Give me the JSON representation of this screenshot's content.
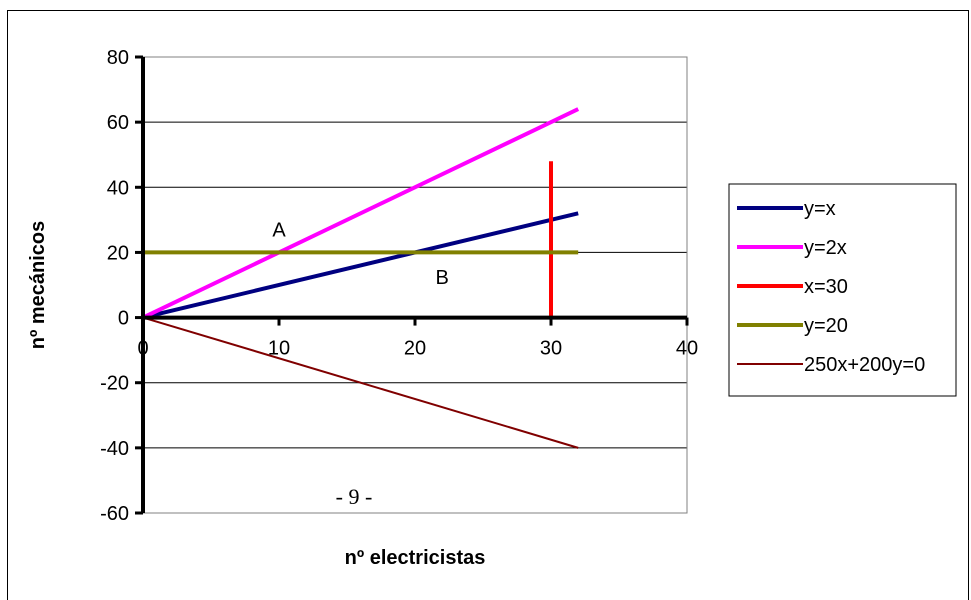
{
  "chart_data": {
    "type": "line",
    "xlabel": "nº electricistas",
    "ylabel": "nº mecánicos",
    "xlim": [
      0,
      40
    ],
    "ylim": [
      -60,
      80
    ],
    "x_ticks": [
      "0",
      "10",
      "20",
      "30",
      "40"
    ],
    "y_ticks": [
      "80",
      "60",
      "40",
      "20",
      "0",
      "-20",
      "-40",
      "-60"
    ],
    "grid": "horizontal",
    "legend_position": "right",
    "series": [
      {
        "name": "y=x",
        "color": "#000080",
        "points": [
          [
            0,
            0
          ],
          [
            32,
            32
          ]
        ]
      },
      {
        "name": "y=2x",
        "color": "#ff00ff",
        "points": [
          [
            0,
            0
          ],
          [
            32,
            64
          ]
        ]
      },
      {
        "name": "x=30",
        "color": "#ff0000",
        "points": [
          [
            30,
            0
          ],
          [
            30,
            48
          ]
        ]
      },
      {
        "name": "y=20",
        "color": "#808000",
        "points": [
          [
            0,
            20
          ],
          [
            32,
            20
          ]
        ]
      },
      {
        "name": "250x+200y=0",
        "color": "#800000",
        "points": [
          [
            0,
            0
          ],
          [
            32,
            -40
          ]
        ]
      }
    ],
    "annotations": [
      {
        "text": "A",
        "x": 10,
        "y": 27
      },
      {
        "text": "B",
        "x": 22,
        "y": 12.5
      }
    ]
  },
  "footer": {
    "page_number": "- 9 -"
  }
}
